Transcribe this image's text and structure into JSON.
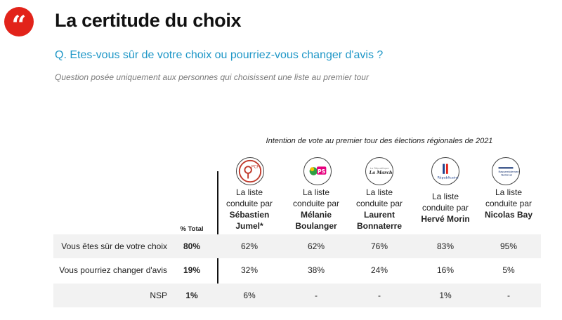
{
  "header": {
    "quote_glyph": "“",
    "title": "La certitude du choix",
    "question": "Q. Etes-vous sûr de votre choix ou pourriez-vous changer d'avis ?",
    "subtitle": "Question posée uniquement aux personnes qui choisissent une liste au premier tour"
  },
  "table": {
    "caption": "Intention de vote au premier tour des élections régionales de 2021",
    "total_header": "% Total",
    "columns": [
      {
        "line1": "La liste",
        "line2": "conduite par",
        "name1": "Sébastien",
        "name2": "Jumel*",
        "logo": "pcf-logo",
        "accent": "#c0392b"
      },
      {
        "line1": "La liste",
        "line2": "conduite par",
        "name1": "Mélanie",
        "name2": "Boulanger",
        "logo": "ps-logo",
        "accent": "#e6007e"
      },
      {
        "line1": "La liste",
        "line2": "conduite par",
        "name1": "Laurent",
        "name2": "Bonnaterre",
        "logo": "lrem-logo",
        "accent": "#222222"
      },
      {
        "line1": "La liste",
        "line2": "conduite par",
        "name1": "Hervé Morin",
        "name2": "",
        "logo": "lr-logo",
        "accent": "#1a3e8c"
      },
      {
        "line1": "La liste",
        "line2": "conduite par",
        "name1": "Nicolas Bay",
        "name2": "",
        "logo": "rn-logo",
        "accent": "#0b2a6b"
      }
    ],
    "rows": [
      {
        "label": "Vous êtes sûr de votre choix",
        "total": "80%",
        "values": [
          "62%",
          "62%",
          "76%",
          "83%",
          "95%"
        ]
      },
      {
        "label": "Vous pourriez changer d'avis",
        "total": "19%",
        "values": [
          "32%",
          "38%",
          "24%",
          "16%",
          "5%"
        ]
      },
      {
        "label": "NSP",
        "total": "1%",
        "values": [
          "6%",
          "-",
          "-",
          "1%",
          "-"
        ]
      }
    ]
  }
}
